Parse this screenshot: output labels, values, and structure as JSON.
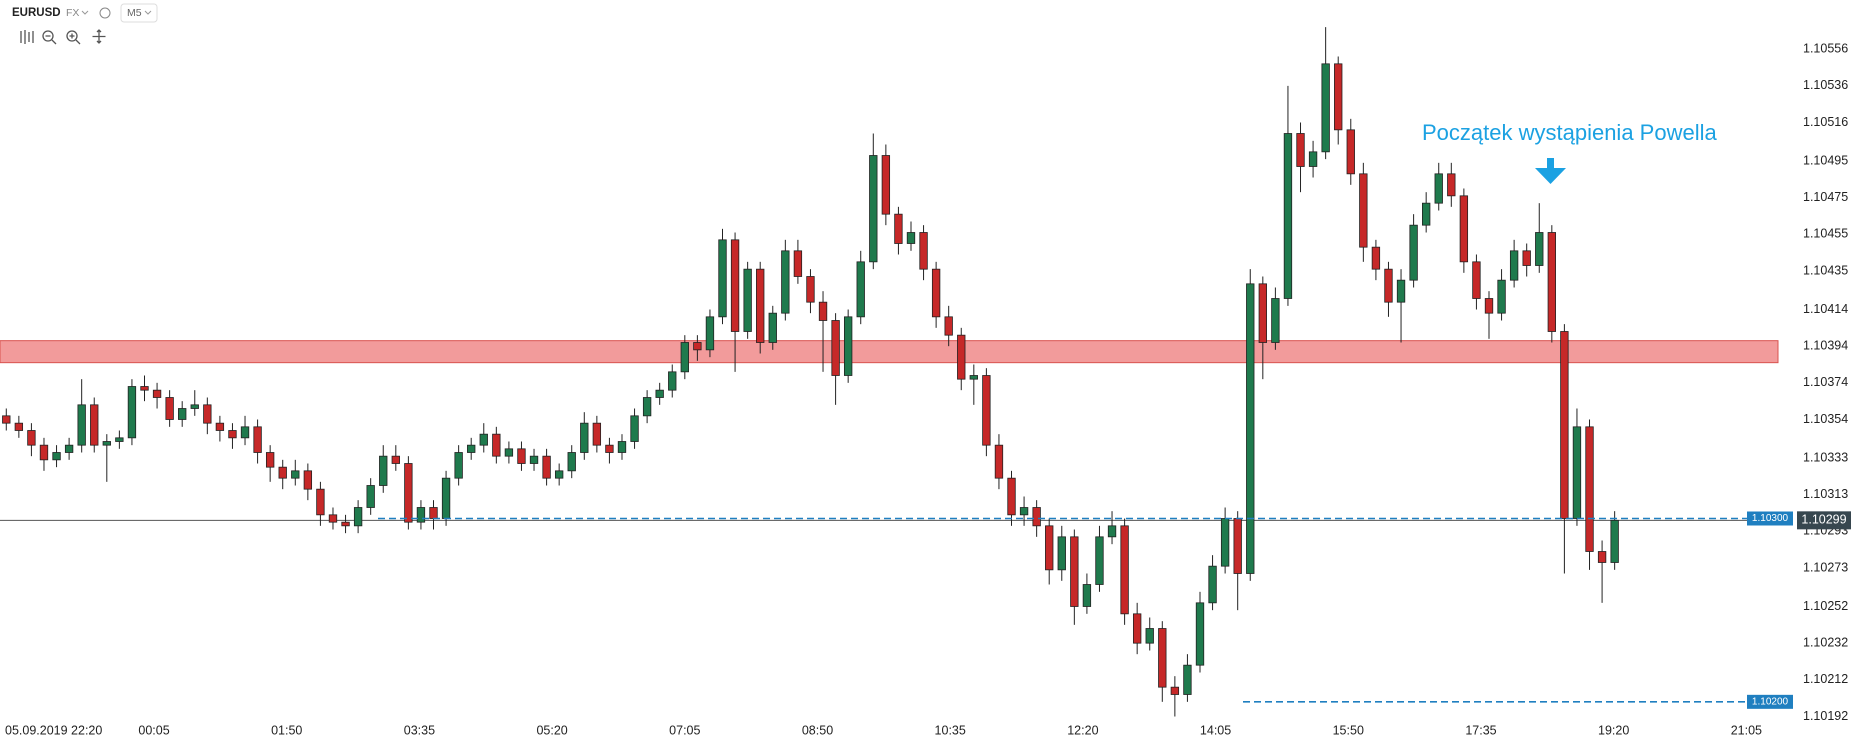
{
  "header": {
    "symbol": "EURUSD",
    "market": "FX",
    "timeframe": "M5"
  },
  "chart_data": {
    "type": "candlestick",
    "annotation": "Początek wystąpienia Powella",
    "up_color": "#1f7a4d",
    "down_color": "#c62828",
    "ylim": [
      1.10189,
      1.10561
    ],
    "yticks": [
      1.10556,
      1.10536,
      1.10516,
      1.10495,
      1.10475,
      1.10455,
      1.10435,
      1.10414,
      1.10394,
      1.10374,
      1.10354,
      1.10333,
      1.10313,
      1.10293,
      1.10273,
      1.10252,
      1.10232,
      1.10212,
      1.10192
    ],
    "xlim": [
      -0.5,
      141
    ],
    "xticks": [
      {
        "value": 1.2,
        "label": "05.09.2019 22:20"
      },
      {
        "value": 11.76,
        "label": "00:05"
      },
      {
        "value": 22.32,
        "label": "01:50"
      },
      {
        "value": 32.88,
        "label": "03:35"
      },
      {
        "value": 43.44,
        "label": "05:20"
      },
      {
        "value": 54.0,
        "label": "07:05"
      },
      {
        "value": 64.56,
        "label": "08:50"
      },
      {
        "value": 75.12,
        "label": "10:35"
      },
      {
        "value": 85.68,
        "label": "12:20"
      },
      {
        "value": 96.24,
        "label": "14:05"
      },
      {
        "value": 106.8,
        "label": "15:50"
      },
      {
        "value": 117.36,
        "label": "17:35"
      },
      {
        "value": 127.92,
        "label": "19:20"
      },
      {
        "value": 138.48,
        "label": "21:05"
      }
    ],
    "zone": {
      "from": 1.10385,
      "to": 1.10397,
      "color": "#f29b9b"
    },
    "levels": [
      {
        "value": 1.103,
        "label": "1.10300"
      },
      {
        "value": 1.102,
        "label": "1.10200"
      }
    ],
    "level_color": "#1f7fc0",
    "last_price": 1.10299,
    "candles": [
      [
        1.10356,
        1.1036,
        1.10348,
        1.10352
      ],
      [
        1.10352,
        1.10356,
        1.10344,
        1.10348
      ],
      [
        1.10348,
        1.10352,
        1.10334,
        1.1034
      ],
      [
        1.1034,
        1.10344,
        1.10326,
        1.10332
      ],
      [
        1.10332,
        1.1034,
        1.10328,
        1.10336
      ],
      [
        1.10336,
        1.10344,
        1.10332,
        1.1034
      ],
      [
        1.1034,
        1.10376,
        1.10336,
        1.10362
      ],
      [
        1.10362,
        1.10366,
        1.10336,
        1.1034
      ],
      [
        1.1034,
        1.10346,
        1.1032,
        1.10342
      ],
      [
        1.10342,
        1.10348,
        1.10338,
        1.10344
      ],
      [
        1.10344,
        1.10376,
        1.1034,
        1.10372
      ],
      [
        1.10372,
        1.10378,
        1.10364,
        1.1037
      ],
      [
        1.1037,
        1.10374,
        1.1036,
        1.10366
      ],
      [
        1.10366,
        1.1037,
        1.1035,
        1.10354
      ],
      [
        1.10354,
        1.10364,
        1.1035,
        1.1036
      ],
      [
        1.1036,
        1.1037,
        1.10356,
        1.10362
      ],
      [
        1.10362,
        1.10366,
        1.10346,
        1.10352
      ],
      [
        1.10352,
        1.10356,
        1.10342,
        1.10348
      ],
      [
        1.10348,
        1.10352,
        1.10338,
        1.10344
      ],
      [
        1.10344,
        1.10356,
        1.1034,
        1.1035
      ],
      [
        1.1035,
        1.10354,
        1.1033,
        1.10336
      ],
      [
        1.10336,
        1.1034,
        1.1032,
        1.10328
      ],
      [
        1.10328,
        1.10332,
        1.10316,
        1.10322
      ],
      [
        1.10322,
        1.10332,
        1.10318,
        1.10326
      ],
      [
        1.10326,
        1.1033,
        1.1031,
        1.10316
      ],
      [
        1.10316,
        1.1032,
        1.10296,
        1.10302
      ],
      [
        1.10302,
        1.10306,
        1.10294,
        1.10298
      ],
      [
        1.10298,
        1.10302,
        1.10292,
        1.10296
      ],
      [
        1.10296,
        1.1031,
        1.10292,
        1.10306
      ],
      [
        1.10306,
        1.10322,
        1.10302,
        1.10318
      ],
      [
        1.10318,
        1.1034,
        1.10314,
        1.10334
      ],
      [
        1.10334,
        1.1034,
        1.10326,
        1.1033
      ],
      [
        1.1033,
        1.10334,
        1.10294,
        1.10298
      ],
      [
        1.10298,
        1.1031,
        1.10294,
        1.10306
      ],
      [
        1.10306,
        1.1031,
        1.10294,
        1.103
      ],
      [
        1.103,
        1.10326,
        1.10296,
        1.10322
      ],
      [
        1.10322,
        1.1034,
        1.10318,
        1.10336
      ],
      [
        1.10336,
        1.10344,
        1.10332,
        1.1034
      ],
      [
        1.1034,
        1.10352,
        1.10336,
        1.10346
      ],
      [
        1.10346,
        1.1035,
        1.1033,
        1.10334
      ],
      [
        1.10334,
        1.10342,
        1.1033,
        1.10338
      ],
      [
        1.10338,
        1.10342,
        1.10326,
        1.1033
      ],
      [
        1.1033,
        1.10338,
        1.10326,
        1.10334
      ],
      [
        1.10334,
        1.10338,
        1.10318,
        1.10322
      ],
      [
        1.10322,
        1.1033,
        1.10318,
        1.10326
      ],
      [
        1.10326,
        1.1034,
        1.10322,
        1.10336
      ],
      [
        1.10336,
        1.10358,
        1.10332,
        1.10352
      ],
      [
        1.10352,
        1.10356,
        1.10336,
        1.1034
      ],
      [
        1.1034,
        1.10344,
        1.1033,
        1.10336
      ],
      [
        1.10336,
        1.10346,
        1.10332,
        1.10342
      ],
      [
        1.10342,
        1.1036,
        1.10338,
        1.10356
      ],
      [
        1.10356,
        1.1037,
        1.10352,
        1.10366
      ],
      [
        1.10366,
        1.10374,
        1.10362,
        1.1037
      ],
      [
        1.1037,
        1.10384,
        1.10366,
        1.1038
      ],
      [
        1.1038,
        1.104,
        1.10376,
        1.10396
      ],
      [
        1.10396,
        1.104,
        1.10386,
        1.10392
      ],
      [
        1.10392,
        1.10414,
        1.10388,
        1.1041
      ],
      [
        1.1041,
        1.10458,
        1.10406,
        1.10452
      ],
      [
        1.10452,
        1.10456,
        1.1038,
        1.10402
      ],
      [
        1.10402,
        1.1044,
        1.10398,
        1.10436
      ],
      [
        1.10436,
        1.1044,
        1.1039,
        1.10396
      ],
      [
        1.10396,
        1.10416,
        1.10392,
        1.10412
      ],
      [
        1.10412,
        1.10452,
        1.10408,
        1.10446
      ],
      [
        1.10446,
        1.10452,
        1.10428,
        1.10432
      ],
      [
        1.10432,
        1.10436,
        1.10412,
        1.10418
      ],
      [
        1.10418,
        1.10424,
        1.1038,
        1.10408
      ],
      [
        1.10408,
        1.10412,
        1.10362,
        1.10378
      ],
      [
        1.10378,
        1.10414,
        1.10374,
        1.1041
      ],
      [
        1.1041,
        1.10446,
        1.10406,
        1.1044
      ],
      [
        1.1044,
        1.1051,
        1.10436,
        1.10498
      ],
      [
        1.10498,
        1.10504,
        1.1046,
        1.10466
      ],
      [
        1.10466,
        1.1047,
        1.10444,
        1.1045
      ],
      [
        1.1045,
        1.10462,
        1.10446,
        1.10456
      ],
      [
        1.10456,
        1.1046,
        1.1043,
        1.10436
      ],
      [
        1.10436,
        1.1044,
        1.10404,
        1.1041
      ],
      [
        1.1041,
        1.10416,
        1.10394,
        1.104
      ],
      [
        1.104,
        1.10404,
        1.1037,
        1.10376
      ],
      [
        1.10376,
        1.10384,
        1.10362,
        1.10378
      ],
      [
        1.10378,
        1.10382,
        1.10334,
        1.1034
      ],
      [
        1.1034,
        1.10346,
        1.10316,
        1.10322
      ],
      [
        1.10322,
        1.10326,
        1.10296,
        1.10302
      ],
      [
        1.10302,
        1.10312,
        1.10296,
        1.10306
      ],
      [
        1.10306,
        1.1031,
        1.1029,
        1.10296
      ],
      [
        1.10296,
        1.103,
        1.10264,
        1.10272
      ],
      [
        1.10272,
        1.10296,
        1.10266,
        1.1029
      ],
      [
        1.1029,
        1.10294,
        1.10242,
        1.10252
      ],
      [
        1.10252,
        1.1027,
        1.10248,
        1.10264
      ],
      [
        1.10264,
        1.10296,
        1.1026,
        1.1029
      ],
      [
        1.1029,
        1.10304,
        1.10286,
        1.10296
      ],
      [
        1.10296,
        1.103,
        1.10242,
        1.10248
      ],
      [
        1.10248,
        1.10254,
        1.10226,
        1.10232
      ],
      [
        1.10232,
        1.10246,
        1.10228,
        1.1024
      ],
      [
        1.1024,
        1.10244,
        1.102,
        1.10208
      ],
      [
        1.10208,
        1.10214,
        1.10192,
        1.10204
      ],
      [
        1.10204,
        1.10226,
        1.102,
        1.1022
      ],
      [
        1.1022,
        1.1026,
        1.10216,
        1.10254
      ],
      [
        1.10254,
        1.1028,
        1.1025,
        1.10274
      ],
      [
        1.10274,
        1.10306,
        1.1027,
        1.103
      ],
      [
        1.103,
        1.10304,
        1.1025,
        1.1027
      ],
      [
        1.1027,
        1.10436,
        1.10266,
        1.10428
      ],
      [
        1.10428,
        1.10432,
        1.10376,
        1.10396
      ],
      [
        1.10396,
        1.10426,
        1.10392,
        1.1042
      ],
      [
        1.1042,
        1.10536,
        1.10416,
        1.1051
      ],
      [
        1.1051,
        1.10516,
        1.10478,
        1.10492
      ],
      [
        1.10492,
        1.10506,
        1.10486,
        1.105
      ],
      [
        1.105,
        1.10568,
        1.10496,
        1.10548
      ],
      [
        1.10548,
        1.10552,
        1.10504,
        1.10512
      ],
      [
        1.10512,
        1.10518,
        1.10482,
        1.10488
      ],
      [
        1.10488,
        1.10494,
        1.1044,
        1.10448
      ],
      [
        1.10448,
        1.10452,
        1.1043,
        1.10436
      ],
      [
        1.10436,
        1.1044,
        1.1041,
        1.10418
      ],
      [
        1.10418,
        1.10436,
        1.10396,
        1.1043
      ],
      [
        1.1043,
        1.10466,
        1.10426,
        1.1046
      ],
      [
        1.1046,
        1.10478,
        1.10456,
        1.10472
      ],
      [
        1.10472,
        1.10494,
        1.10468,
        1.10488
      ],
      [
        1.10488,
        1.10494,
        1.1047,
        1.10476
      ],
      [
        1.10476,
        1.1048,
        1.10434,
        1.1044
      ],
      [
        1.1044,
        1.10444,
        1.10414,
        1.1042
      ],
      [
        1.1042,
        1.10424,
        1.10398,
        1.10412
      ],
      [
        1.10412,
        1.10436,
        1.10408,
        1.1043
      ],
      [
        1.1043,
        1.10452,
        1.10426,
        1.10446
      ],
      [
        1.10446,
        1.1045,
        1.10432,
        1.10438
      ],
      [
        1.10438,
        1.10472,
        1.10434,
        1.10456
      ],
      [
        1.10456,
        1.1046,
        1.10396,
        1.10402
      ],
      [
        1.10402,
        1.10406,
        1.1027,
        1.103
      ],
      [
        1.103,
        1.1036,
        1.10296,
        1.1035
      ],
      [
        1.1035,
        1.10354,
        1.10272,
        1.10282
      ],
      [
        1.10282,
        1.10288,
        1.10254,
        1.10276
      ],
      [
        1.10276,
        1.10304,
        1.10272,
        1.10299
      ]
    ]
  }
}
